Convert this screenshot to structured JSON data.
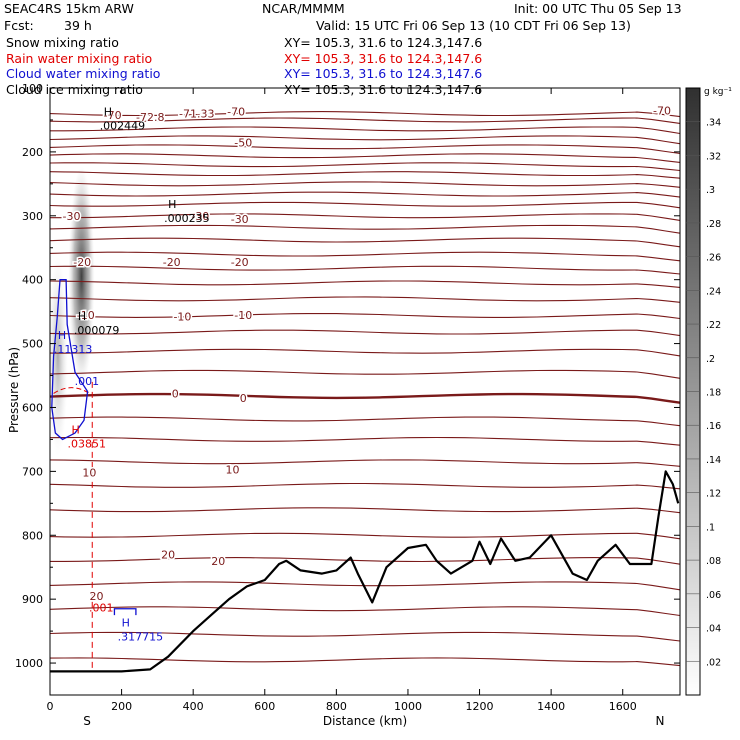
{
  "header": {
    "model": "SEAC4RS 15km ARW",
    "org": "NCAR/MMMM",
    "init": "Init: 00 UTC Thu 05 Sep 13",
    "fcst_label": "Fcst:",
    "fcst_value": "39 h",
    "valid": "Valid: 15 UTC Fri 06 Sep 13 (10 CDT Fri 06 Sep 13)"
  },
  "fields": [
    {
      "name": "Snow mixing ratio",
      "xy": "XY= 105.3, 31.6 to 124.3,147.6",
      "color": "#000000"
    },
    {
      "name": "Rain water mixing ratio",
      "xy": "XY= 105.3, 31.6 to 124.3,147.6",
      "color": "#e00000"
    },
    {
      "name": "Cloud water mixing ratio",
      "xy": "XY= 105.3, 31.6 to 124.3,147.6",
      "color": "#1010d0"
    },
    {
      "name": "Cloud ice mixing ratio",
      "xy": "XY= 105.3, 31.6 to 124.3,147.6",
      "color": "#000000"
    }
  ],
  "chart_data": {
    "type": "contour-cross-section",
    "ylabel": "Pressure (hPa)",
    "xlabel": "Distance (km)",
    "x_start_label": "S",
    "x_end_label": "N",
    "xlim": [
      0,
      1760
    ],
    "ylim": [
      1050,
      100
    ],
    "x_ticks": [
      "0",
      "200",
      "400",
      "600",
      "800",
      "1000",
      "1200",
      "1400",
      "1600"
    ],
    "y_ticks": [
      "100",
      "200",
      "300",
      "400",
      "500",
      "600",
      "700",
      "800",
      "900",
      "1000"
    ],
    "colorbar": {
      "unit": "g kg⁻¹",
      "ticks": [
        ".02",
        ".04",
        ".06",
        ".08",
        ".1",
        ".12",
        ".14",
        ".16",
        ".18",
        ".2",
        ".22",
        ".24",
        ".26",
        ".28",
        ".3",
        ".32",
        ".34"
      ],
      "color_low": "#ffffff",
      "color_high": "#303030"
    },
    "temperature_labels": [
      "-72.8",
      "-71.33",
      "-70",
      "-70",
      "-70",
      "-50",
      "-30",
      "-30",
      "-30",
      "-20",
      "-20",
      "-20",
      "-10",
      "-10",
      "-10",
      "0",
      "0",
      "10",
      "10",
      "20",
      "20",
      "20"
    ],
    "extrema": [
      {
        "mark": "H",
        "value": ".002449",
        "color": "#000000",
        "x": 150,
        "p": 160
      },
      {
        "mark": "H",
        "value": ".000235",
        "color": "#000000",
        "x": 330,
        "p": 305
      },
      {
        "mark": "H",
        "value": ".000079",
        "color": "#000000",
        "x": 78,
        "p": 480
      },
      {
        "mark": "H",
        "value": ".11313",
        "color": "#1010d0",
        "x": 22,
        "p": 510
      },
      {
        "mark": "",
        "value": ".001",
        "color": "#1010d0",
        "x": 80,
        "p": 560
      },
      {
        "mark": "H",
        "value": ".03851",
        "color": "#e00000",
        "x": 60,
        "p": 658
      },
      {
        "mark": "",
        "value": ".001",
        "color": "#e00000",
        "x": 120,
        "p": 915
      },
      {
        "mark": "H",
        "value": ".317715",
        "color": "#1010d0",
        "x": 200,
        "p": 960
      }
    ],
    "terrain": {
      "x": [
        0,
        100,
        200,
        280,
        330,
        400,
        450,
        500,
        550,
        600,
        640,
        660,
        700,
        760,
        800,
        840,
        860,
        900,
        940,
        1000,
        1050,
        1080,
        1120,
        1180,
        1200,
        1230,
        1260,
        1300,
        1340,
        1400,
        1460,
        1500,
        1530,
        1580,
        1620,
        1680,
        1700,
        1720,
        1740,
        1755
      ],
      "p": [
        1013,
        1013,
        1013,
        1010,
        990,
        950,
        925,
        900,
        880,
        870,
        845,
        840,
        855,
        860,
        855,
        835,
        860,
        905,
        850,
        820,
        815,
        840,
        860,
        840,
        810,
        845,
        805,
        840,
        835,
        800,
        860,
        870,
        840,
        815,
        845,
        845,
        770,
        700,
        720,
        750
      ]
    }
  }
}
